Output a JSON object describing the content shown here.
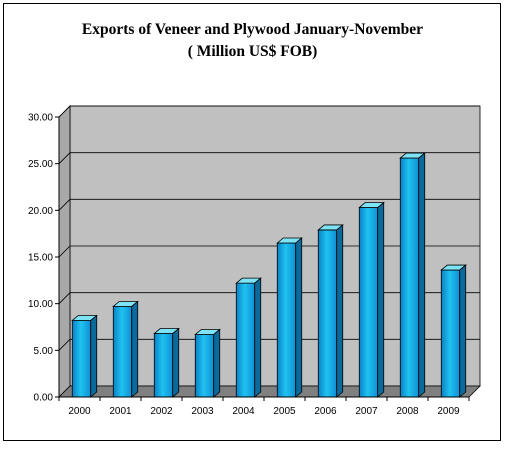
{
  "chart_data": {
    "type": "bar",
    "title": "Exports of Veneer and Plywood January-November",
    "subtitle": "( Million US$ FOB)",
    "xlabel": "",
    "ylabel": "",
    "categories": [
      "2000",
      "2001",
      "2002",
      "2003",
      "2004",
      "2005",
      "2006",
      "2007",
      "2008",
      "2009"
    ],
    "values": [
      8.2,
      9.7,
      6.8,
      6.7,
      12.2,
      16.5,
      17.9,
      20.3,
      25.6,
      13.6
    ],
    "ylim": [
      0,
      30
    ],
    "yticks": [
      "0.00",
      "5.00",
      "10.00",
      "15.00",
      "20.00",
      "25.00",
      "30.00"
    ],
    "grid": true,
    "style_3d": true,
    "legend": "none",
    "colors": {
      "bar_front": "#1aa8e6",
      "bar_top": "#7de3f5",
      "bar_side": "#0b6a9c",
      "plot_wall": "#c0c0c0",
      "plot_floor": "#808080",
      "gridline": "#000000"
    }
  }
}
